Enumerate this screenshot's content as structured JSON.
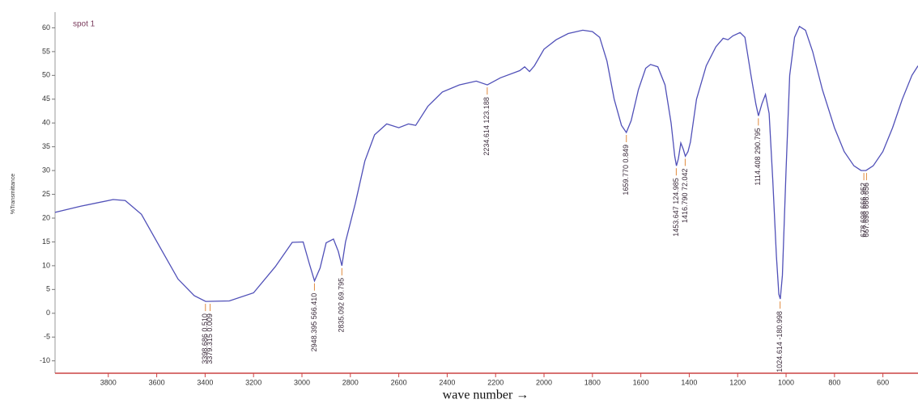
{
  "chart_data": {
    "type": "line",
    "title": "spot 1",
    "y_label": "%Transmittance",
    "x_label": "wave number →",
    "color": "#5050b8",
    "x": [
      4020,
      3914,
      3780,
      3730,
      3663,
      3579,
      3512,
      3445,
      3398,
      3300,
      3200,
      3110,
      3040,
      2995,
      2970,
      2948,
      2925,
      2900,
      2870,
      2850,
      2835,
      2820,
      2780,
      2740,
      2700,
      2650,
      2600,
      2560,
      2530,
      2480,
      2420,
      2350,
      2280,
      2234,
      2180,
      2100,
      2080,
      2060,
      2040,
      2000,
      1950,
      1900,
      1840,
      1800,
      1770,
      1740,
      1710,
      1680,
      1660,
      1640,
      1610,
      1580,
      1560,
      1530,
      1500,
      1475,
      1460,
      1453,
      1445,
      1435,
      1425,
      1416,
      1405,
      1395,
      1370,
      1330,
      1290,
      1260,
      1240,
      1220,
      1190,
      1170,
      1145,
      1125,
      1114,
      1100,
      1085,
      1070,
      1055,
      1040,
      1030,
      1024,
      1015,
      1000,
      985,
      965,
      945,
      920,
      890,
      850,
      800,
      760,
      720,
      690,
      670,
      640,
      600,
      560,
      520,
      480,
      455
    ],
    "values": [
      21.2,
      22.5,
      23.9,
      23.7,
      20.8,
      13.2,
      7.2,
      3.7,
      2.5,
      2.6,
      4.3,
      9.8,
      14.9,
      15.0,
      10.5,
      6.8,
      9.5,
      14.8,
      15.6,
      13,
      10,
      15,
      23,
      32,
      37.5,
      39.8,
      39,
      39.8,
      39.5,
      43.5,
      46.5,
      48,
      48.8,
      48,
      49.5,
      51,
      51.8,
      50.8,
      52,
      55.5,
      57.5,
      58.8,
      59.5,
      59.2,
      58,
      53,
      45,
      39.5,
      38,
      40.5,
      47,
      51.5,
      52.3,
      51.8,
      48,
      40,
      33,
      31,
      32.5,
      35.8,
      34.5,
      33,
      34,
      36,
      45,
      52,
      56,
      57.8,
      57.5,
      58.3,
      59,
      58,
      50,
      44,
      41.5,
      44,
      46,
      42,
      28,
      12,
      4,
      3,
      8,
      30,
      50,
      58,
      60.3,
      59.5,
      55,
      47,
      39,
      34,
      31,
      30,
      30,
      31,
      34,
      39,
      45,
      50,
      52
    ],
    "xlim": [
      4020,
      455
    ],
    "ylim": [
      -12.6,
      63.3
    ],
    "xticks": [
      3800,
      3600,
      3400,
      3200,
      3000,
      2800,
      2600,
      2400,
      2200,
      2000,
      1800,
      1600,
      1400,
      1200,
      1000,
      800,
      600
    ],
    "yticks": [
      -10,
      -5,
      0,
      5,
      10,
      15,
      20,
      25,
      30,
      35,
      40,
      45,
      50,
      55,
      60
    ],
    "annotations": [
      {
        "text": "3398.686  0.510",
        "x": 3398.686,
        "y": 2.5
      },
      {
        "text": "3379.315  0.009",
        "x": 3379.315,
        "y": 2.5
      },
      {
        "text": "2948.395  566.410",
        "x": 2948.395,
        "y": 6.8
      },
      {
        "text": "2835.092  69.795",
        "x": 2835.092,
        "y": 10
      },
      {
        "text": "2234.614  123.188",
        "x": 2234.614,
        "y": 48
      },
      {
        "text": "1659.770  0.849",
        "x": 1659.77,
        "y": 38
      },
      {
        "text": "1453.647  124.985",
        "x": 1453.647,
        "y": 31
      },
      {
        "text": "1416.790  72.042",
        "x": 1416.79,
        "y": 33
      },
      {
        "text": "1114.408  290.795",
        "x": 1114.408,
        "y": 41.5
      },
      {
        "text": "1024.614  -180.998",
        "x": 1024.614,
        "y": 3
      },
      {
        "text": "678.698  666.952",
        "x": 678.698,
        "y": 30
      },
      {
        "text": "667.698  666.656",
        "x": 667.698,
        "y": 30
      }
    ]
  }
}
